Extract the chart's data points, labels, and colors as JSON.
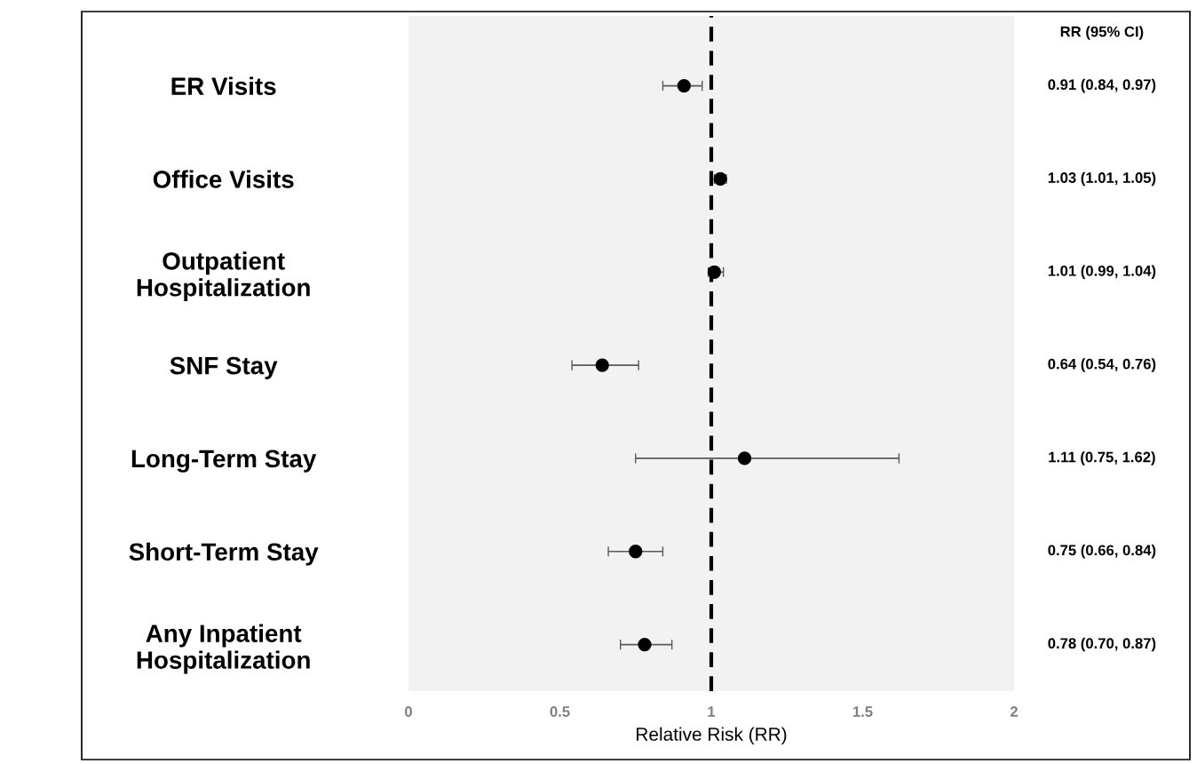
{
  "chart_data": {
    "type": "scatter",
    "orientation": "horizontal",
    "categories": [
      "ER Visits",
      "Office Visits",
      "Outpatient\nHospitalization",
      "SNF Stay",
      "Long-Term Stay",
      "Short-Term Stay",
      "Any Inpatient\nHospitalization"
    ],
    "values": [
      0.91,
      1.03,
      1.01,
      0.64,
      1.11,
      0.75,
      0.78
    ],
    "errors": [
      [
        0.84,
        0.97
      ],
      [
        1.01,
        1.05
      ],
      [
        0.99,
        1.04
      ],
      [
        0.54,
        0.76
      ],
      [
        0.75,
        1.62
      ],
      [
        0.66,
        0.84
      ],
      [
        0.7,
        0.87
      ]
    ],
    "value_labels": [
      "0.91 (0.84, 0.97)",
      "1.03 (1.01, 1.05)",
      "1.01 (0.99, 1.04)",
      "0.64 (0.54, 0.76)",
      "1.11 (0.75, 1.62)",
      "0.75 (0.66, 0.84)",
      "0.78 (0.70, 0.87)"
    ],
    "color": "#000000",
    "marker": "circle",
    "xlabel": "Relative Risk (RR)",
    "xlim": [
      0,
      2
    ],
    "xticks": [
      0,
      0.5,
      1,
      1.5,
      2
    ],
    "ref_lines": [
      {
        "axis": "x",
        "value": 1,
        "color": "#000000",
        "line_style": "dashed"
      }
    ],
    "annotations": [
      "RR (95% CI)"
    ],
    "grid": false,
    "legend": false
  }
}
